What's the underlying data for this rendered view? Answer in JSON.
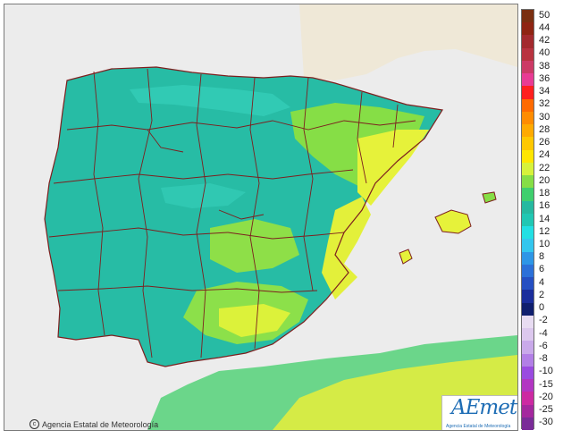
{
  "map": {
    "type": "temperature-choropleth",
    "region": "Iberian Peninsula and Balearic Islands",
    "copyright": "Agencia Estatal de Meteorología",
    "logo": {
      "wordmark": "AEmet",
      "subtitle": "Agencia Estatal de Meteorología"
    },
    "colors": {
      "sea": "#ececec",
      "land_main": "#27bca5",
      "land_light": "#33c8b8",
      "warm": "#7fe04e",
      "hot": "#d8f23a",
      "hottest": "#f6f22a",
      "borders": "#7d1f1f",
      "logo_blue": "#1e6db5"
    }
  },
  "legend": {
    "items": [
      {
        "label": "50",
        "color": "#7a2f10"
      },
      {
        "label": "44",
        "color": "#8f2412"
      },
      {
        "label": "42",
        "color": "#a32a2e"
      },
      {
        "label": "40",
        "color": "#b83340"
      },
      {
        "label": "38",
        "color": "#cc3a66"
      },
      {
        "label": "36",
        "color": "#e83b94"
      },
      {
        "label": "34",
        "color": "#ff1f1f"
      },
      {
        "label": "32",
        "color": "#ff6a00"
      },
      {
        "label": "30",
        "color": "#ff8c00"
      },
      {
        "label": "28",
        "color": "#ffaa00"
      },
      {
        "label": "26",
        "color": "#ffc800"
      },
      {
        "label": "24",
        "color": "#ffe600"
      },
      {
        "label": "22",
        "color": "#d7f23b"
      },
      {
        "label": "20",
        "color": "#86de46"
      },
      {
        "label": "18",
        "color": "#3fcf6e"
      },
      {
        "label": "16",
        "color": "#26b9a0"
      },
      {
        "label": "14",
        "color": "#21c7b3"
      },
      {
        "label": "12",
        "color": "#22dfe3"
      },
      {
        "label": "10",
        "color": "#33c6ee"
      },
      {
        "label": "8",
        "color": "#2e96e6"
      },
      {
        "label": "6",
        "color": "#2c70d8"
      },
      {
        "label": "4",
        "color": "#254fc2"
      },
      {
        "label": "2",
        "color": "#1b2e9c"
      },
      {
        "label": "0",
        "color": "#101f6e"
      },
      {
        "label": "-2",
        "color": "#e8dcf2"
      },
      {
        "label": "-4",
        "color": "#dcc8ee"
      },
      {
        "label": "-6",
        "color": "#c9a9ea"
      },
      {
        "label": "-8",
        "color": "#b27fe6"
      },
      {
        "label": "-10",
        "color": "#9a4be0"
      },
      {
        "label": "-15",
        "color": "#b236c2"
      },
      {
        "label": "-20",
        "color": "#cc2aa2"
      },
      {
        "label": "-25",
        "color": "#a4289e"
      },
      {
        "label": "-30",
        "color": "#7a2c98"
      }
    ]
  }
}
